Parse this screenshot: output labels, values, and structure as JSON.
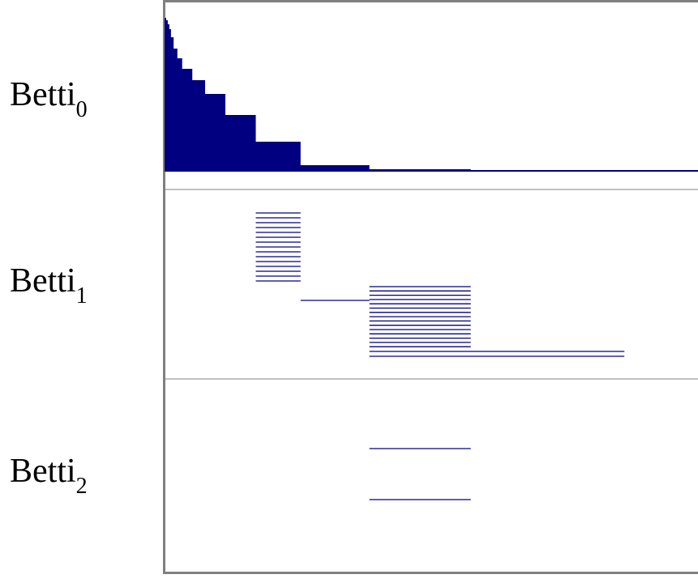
{
  "chart_data": {
    "type": "barcode",
    "color": "#000080",
    "xlim": [
      0,
      100
    ],
    "dimensions": [
      {
        "label": "Betti",
        "subscript": "0",
        "bars": [
          {
            "start": 0,
            "end": 0.3,
            "count": 3
          },
          {
            "start": 0,
            "end": 0.6,
            "count": 5
          },
          {
            "start": 0,
            "end": 0.9,
            "count": 6
          },
          {
            "start": 0,
            "end": 1.2,
            "count": 10
          },
          {
            "start": 0,
            "end": 1.7,
            "count": 14
          },
          {
            "start": 0,
            "end": 2.4,
            "count": 12
          },
          {
            "start": 0,
            "end": 3.3,
            "count": 13
          },
          {
            "start": 0,
            "end": 5.2,
            "count": 14
          },
          {
            "start": 0,
            "end": 7.6,
            "count": 17
          },
          {
            "start": 0,
            "end": 11.4,
            "count": 26
          },
          {
            "start": 0,
            "end": 17.1,
            "count": 33
          },
          {
            "start": 0,
            "end": 25.5,
            "count": 29
          },
          {
            "start": 0,
            "end": 38.4,
            "count": 5
          },
          {
            "start": 0,
            "end": 57.4,
            "count": 1
          },
          {
            "start": 0,
            "end": 100,
            "count": 2
          }
        ]
      },
      {
        "label": "Betti",
        "subscript": "1",
        "bars": [
          {
            "start": 17.1,
            "end": 25.5,
            "count": 15
          },
          {
            "start": 25.5,
            "end": 38.4,
            "count": 1
          },
          {
            "start": 38.4,
            "end": 57.4,
            "count": 15
          },
          {
            "start": 38.4,
            "end": 86.2,
            "count": 2
          }
        ]
      },
      {
        "label": "Betti",
        "subscript": "2",
        "bars": [
          {
            "start": 38.4,
            "end": 57.4,
            "count": 2
          }
        ]
      }
    ]
  }
}
